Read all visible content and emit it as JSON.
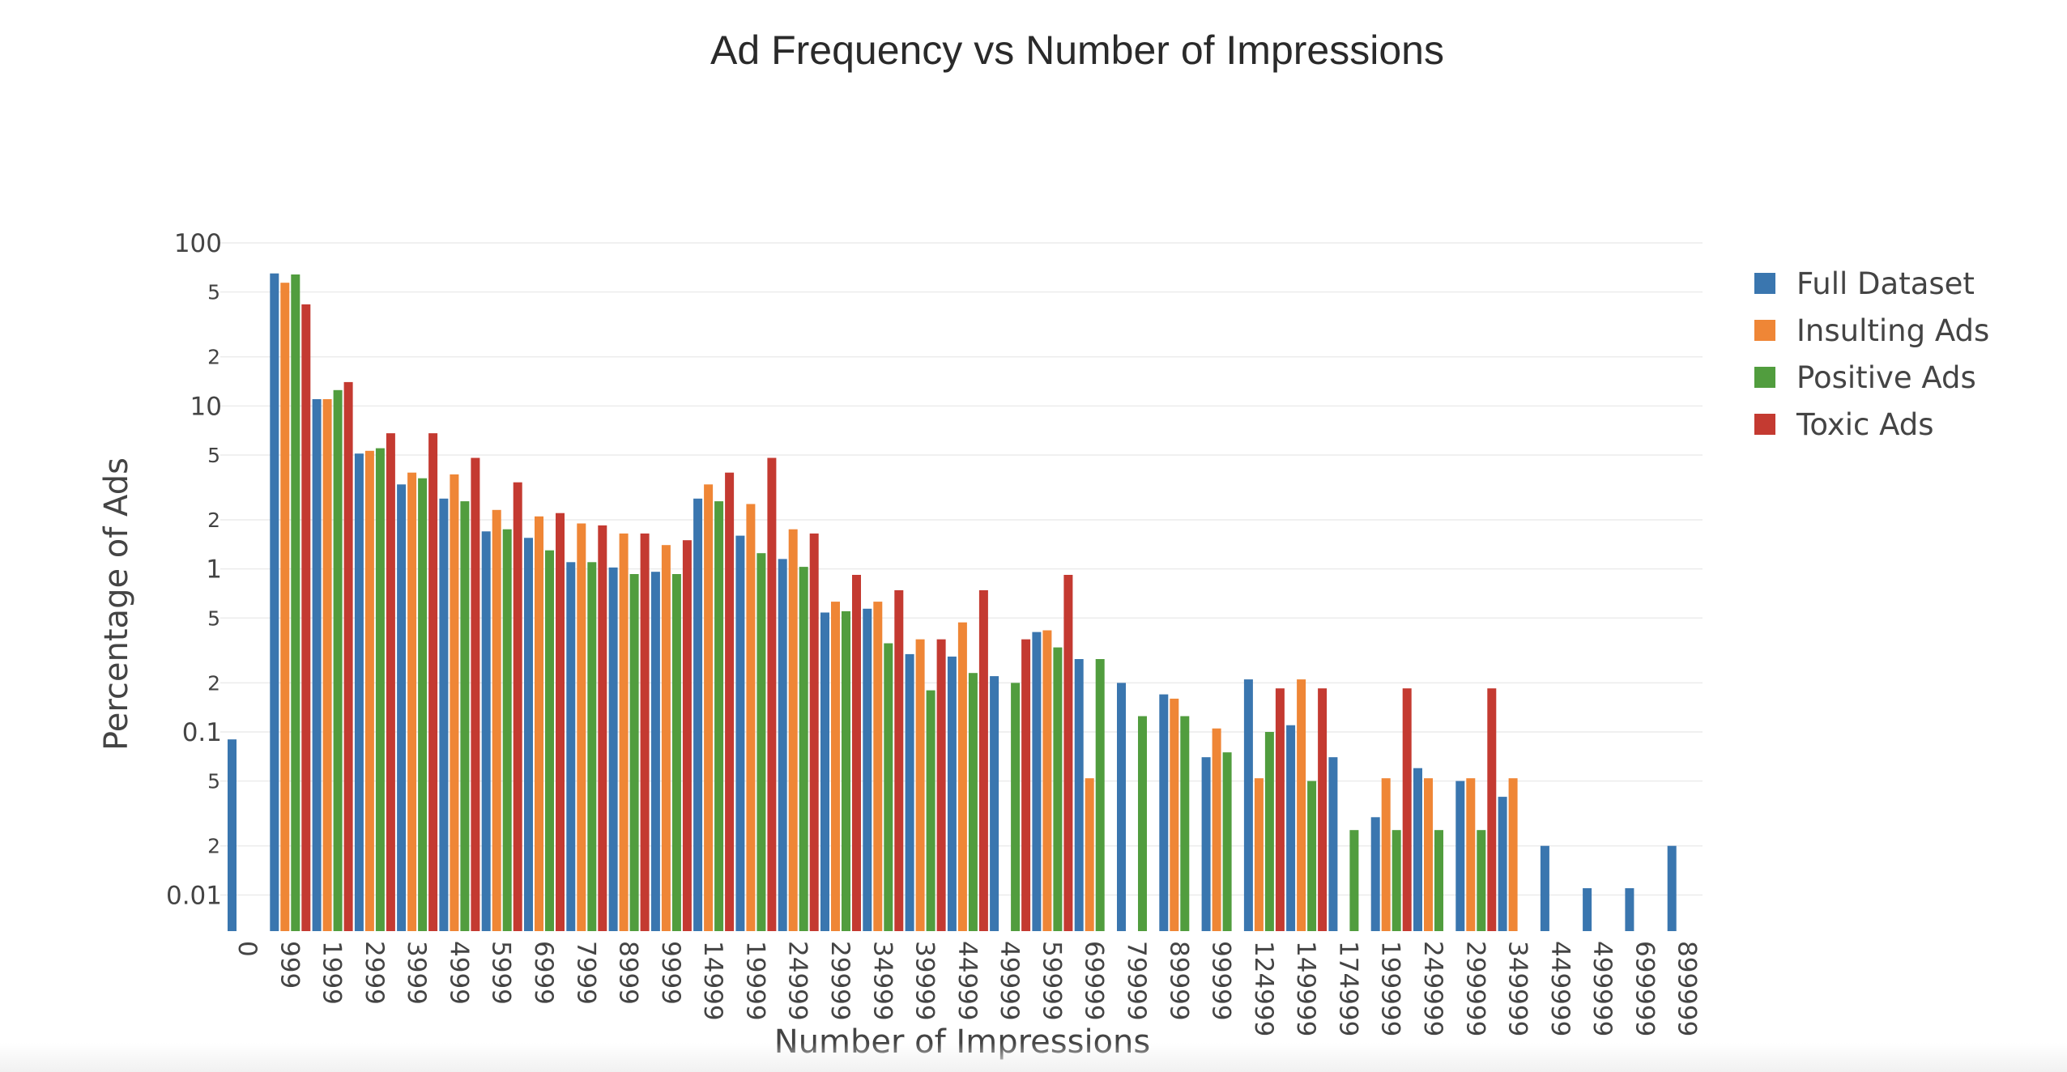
{
  "chart_data": {
    "type": "bar",
    "title": "Ad Frequency vs Number of Impressions",
    "xlabel": "Number of Impressions",
    "ylabel": "Percentage of Ads",
    "y_scale": "log",
    "ylim": [
      0.006,
      100
    ],
    "y_major_ticks": [
      {
        "value": 100,
        "label": "100"
      },
      {
        "value": 10,
        "label": "10"
      },
      {
        "value": 1,
        "label": "1"
      },
      {
        "value": 0.1,
        "label": "0.1"
      },
      {
        "value": 0.01,
        "label": "0.01"
      }
    ],
    "y_minor_ticks": [
      {
        "value": 50,
        "label": "5"
      },
      {
        "value": 20,
        "label": "2"
      },
      {
        "value": 5,
        "label": "5"
      },
      {
        "value": 2,
        "label": "2"
      },
      {
        "value": 0.5,
        "label": "5"
      },
      {
        "value": 0.2,
        "label": "2"
      },
      {
        "value": 0.05,
        "label": "5"
      },
      {
        "value": 0.02,
        "label": "2"
      }
    ],
    "grid": true,
    "legend_position": "top-right",
    "categories": [
      "0",
      "999",
      "1999",
      "2999",
      "3999",
      "4999",
      "5999",
      "6999",
      "7999",
      "8999",
      "9999",
      "14999",
      "19999",
      "24999",
      "29999",
      "34999",
      "39999",
      "44999",
      "49999",
      "59999",
      "69999",
      "79999",
      "89999",
      "99999",
      "124999",
      "149999",
      "174999",
      "199999",
      "249999",
      "299999",
      "349999",
      "449999",
      "499999",
      "699999",
      "899999"
    ],
    "series": [
      {
        "name": "Full Dataset",
        "color": "#3a76af",
        "values": [
          0.09,
          65,
          11,
          5.1,
          3.3,
          2.7,
          1.7,
          1.55,
          1.1,
          1.02,
          0.96,
          2.7,
          1.6,
          1.15,
          0.54,
          0.57,
          0.3,
          0.29,
          0.22,
          0.41,
          0.28,
          0.2,
          0.17,
          0.07,
          0.21,
          0.11,
          0.07,
          0.03,
          0.06,
          0.05,
          0.04,
          0.02,
          0.011,
          0.011,
          0.02
        ]
      },
      {
        "name": "Insulting Ads",
        "color": "#ef8636",
        "values": [
          null,
          57,
          11,
          5.3,
          3.9,
          3.8,
          2.3,
          2.1,
          1.9,
          1.65,
          1.4,
          3.3,
          2.5,
          1.75,
          0.63,
          0.63,
          0.37,
          0.47,
          null,
          0.42,
          0.052,
          null,
          0.16,
          0.105,
          0.052,
          0.21,
          null,
          0.052,
          0.052,
          0.052,
          0.052,
          null,
          null,
          null,
          null
        ]
      },
      {
        "name": "Positive Ads",
        "color": "#519d3e",
        "values": [
          null,
          64,
          12.5,
          5.5,
          3.6,
          2.6,
          1.75,
          1.3,
          1.1,
          0.93,
          0.93,
          2.6,
          1.25,
          1.03,
          0.55,
          0.35,
          0.18,
          0.23,
          0.2,
          0.33,
          0.28,
          0.125,
          0.125,
          0.075,
          0.1,
          0.05,
          0.025,
          0.025,
          0.025,
          0.025,
          null,
          null,
          null,
          null,
          null
        ]
      },
      {
        "name": "Toxic Ads",
        "color": "#c43a31",
        "values": [
          null,
          42,
          14,
          6.8,
          6.8,
          4.8,
          3.4,
          2.2,
          1.85,
          1.65,
          1.5,
          3.9,
          4.8,
          1.65,
          0.92,
          0.74,
          0.37,
          0.74,
          0.37,
          0.92,
          null,
          null,
          null,
          null,
          0.185,
          0.185,
          null,
          0.185,
          null,
          0.185,
          null,
          null,
          null,
          null,
          null
        ]
      }
    ]
  }
}
